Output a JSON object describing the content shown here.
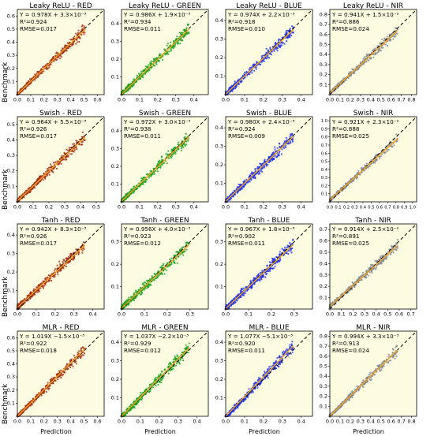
{
  "colors": {
    "background": "#fdfbe0",
    "red": "#a52b12",
    "green": "#1aa01e",
    "blue": "#1f2fe8",
    "nir": "#7f8894",
    "fit_line": "#f5a623",
    "identity_line": "#000000"
  },
  "labels": {
    "ylabel": "Benchmark",
    "xlabel": "Prediction"
  },
  "chart_data": [
    {
      "type": "scatter",
      "title": "Leaky ReLU - RED",
      "equation": "Y = 0.978X + 3.3×10⁻³",
      "r2": "R²=0.924",
      "rmse": "RMSE=0.017",
      "band": "red",
      "slope": 0.978,
      "intercept": 0.0033,
      "xlim": [
        0,
        0.65
      ],
      "ylim": [
        0,
        0.65
      ],
      "ticks": [
        "0.0",
        "0.1",
        "0.2",
        "0.3",
        "0.4",
        "0.5",
        "0.6"
      ],
      "tick_values": [
        0,
        0.1,
        0.2,
        0.3,
        0.4,
        0.5,
        0.6
      ]
    },
    {
      "type": "scatter",
      "title": "Leaky ReLU - GREEN",
      "equation": "Y = 0.986X + 1.9×10⁻³",
      "r2": "R²=0.934",
      "rmse": "RMSE=0.011",
      "band": "green",
      "slope": 0.986,
      "intercept": 0.0019,
      "xlim": [
        0,
        0.48
      ],
      "ylim": [
        0,
        0.48
      ],
      "ticks": [
        "0.0",
        "0.1",
        "0.2",
        "0.3",
        "0.4"
      ],
      "tick_values": [
        0,
        0.1,
        0.2,
        0.3,
        0.4
      ]
    },
    {
      "type": "scatter",
      "title": "Leaky ReLU - BLUE",
      "equation": "Y = 0.974X + 2.2×10⁻³",
      "r2": "R²=0.918",
      "rmse": "RMSE=0.010",
      "band": "blue",
      "slope": 0.974,
      "intercept": 0.0022,
      "xlim": [
        0,
        0.46
      ],
      "ylim": [
        0,
        0.46
      ],
      "ticks": [
        "0.0",
        "0.1",
        "0.2",
        "0.3",
        "0.4"
      ],
      "tick_values": [
        0,
        0.1,
        0.2,
        0.3,
        0.4
      ]
    },
    {
      "type": "scatter",
      "title": "Leaky ReLU - NIR",
      "equation": "Y = 0.941X + 1.5×10⁻²",
      "r2": "R²=0.886",
      "rmse": "RMSE=0.024",
      "band": "nir",
      "slope": 0.941,
      "intercept": 0.015,
      "xlim": [
        0,
        0.85
      ],
      "ylim": [
        0,
        0.85
      ],
      "ticks": [
        "0.0",
        "0.1",
        "0.2",
        "0.3",
        "0.4",
        "0.5",
        "0.6",
        "0.7",
        "0.8"
      ],
      "tick_values": [
        0,
        0.1,
        0.2,
        0.3,
        0.4,
        0.5,
        0.6,
        0.7,
        0.8
      ]
    },
    {
      "type": "scatter",
      "title": "Swish - RED",
      "equation": "Y = 0.964X + 5.5×10⁻³",
      "r2": "R²=0.926",
      "rmse": "RMSE=0.017",
      "band": "red",
      "slope": 0.964,
      "intercept": 0.0055,
      "xlim": [
        0,
        0.55
      ],
      "ylim": [
        0,
        0.55
      ],
      "ticks": [
        "0.0",
        "0.1",
        "0.2",
        "0.3",
        "0.4",
        "0.5"
      ],
      "tick_values": [
        0,
        0.1,
        0.2,
        0.3,
        0.4,
        0.5
      ]
    },
    {
      "type": "scatter",
      "title": "Swish - GREEN",
      "equation": "Y = 0.972X + 3.0×10⁻³",
      "r2": "R²=0.938",
      "rmse": "RMSE=0.011",
      "band": "green",
      "slope": 0.972,
      "intercept": 0.003,
      "xlim": [
        0,
        0.48
      ],
      "ylim": [
        0,
        0.48
      ],
      "ticks": [
        "0.0",
        "0.1",
        "0.2",
        "0.3",
        "0.4"
      ],
      "tick_values": [
        0,
        0.1,
        0.2,
        0.3,
        0.4
      ]
    },
    {
      "type": "scatter",
      "title": "Swish - BLUE",
      "equation": "Y = 0.980X + 2.4×10⁻³",
      "r2": "R²=0.924",
      "rmse": "RMSE=0.009",
      "band": "blue",
      "slope": 0.98,
      "intercept": 0.0024,
      "xlim": [
        0,
        0.46
      ],
      "ylim": [
        0,
        0.46
      ],
      "ticks": [
        "0.0",
        "0.1",
        "0.2",
        "0.3",
        "0.4"
      ],
      "tick_values": [
        0,
        0.1,
        0.2,
        0.3,
        0.4
      ]
    },
    {
      "type": "scatter",
      "title": "Swish - NIR",
      "equation": "Y = 0.921X + 2.3×10⁻²",
      "r2": "R²=0.888",
      "rmse": "RMSE=0.025",
      "band": "nir",
      "slope": 0.921,
      "intercept": 0.023,
      "xlim": [
        0,
        1.05
      ],
      "ylim": [
        0,
        1.05
      ],
      "ticks": [
        "0.0",
        "0.1",
        "0.2",
        "0.3",
        "0.4",
        "0.5",
        "0.6",
        "0.7",
        "0.8",
        "0.9",
        "1.0"
      ],
      "tick_values": [
        0,
        0.1,
        0.2,
        0.3,
        0.4,
        0.5,
        0.6,
        0.7,
        0.8,
        0.9,
        1.0
      ]
    },
    {
      "type": "scatter",
      "title": "Tanh - RED",
      "equation": "Y = 0.942X + 8.3×10⁻³",
      "r2": "R²=0.926",
      "rmse": "RMSE=0.017",
      "band": "red",
      "slope": 0.942,
      "intercept": 0.0083,
      "xlim": [
        0,
        0.46
      ],
      "ylim": [
        0,
        0.46
      ],
      "ticks": [
        "0.0",
        "0.1",
        "0.2",
        "0.3",
        "0.4"
      ],
      "tick_values": [
        0,
        0.1,
        0.2,
        0.3,
        0.4
      ]
    },
    {
      "type": "scatter",
      "title": "Tanh - GREEN",
      "equation": "Y = 0.956X + 4.0×10⁻³",
      "r2": "R²=0.923",
      "rmse": "RMSE=0.012",
      "band": "green",
      "slope": 0.956,
      "intercept": 0.004,
      "xlim": [
        0,
        0.38
      ],
      "ylim": [
        0,
        0.38
      ],
      "ticks": [
        "0.0",
        "0.1",
        "0.2",
        "0.3"
      ],
      "tick_values": [
        0,
        0.1,
        0.2,
        0.3
      ]
    },
    {
      "type": "scatter",
      "title": "Tanh - BLUE",
      "equation": "Y = 0.967X + 1.8×10⁻³",
      "r2": "R²=0.902",
      "rmse": "RMSE=0.011",
      "band": "blue",
      "slope": 0.967,
      "intercept": 0.0018,
      "xlim": [
        0,
        0.38
      ],
      "ylim": [
        0,
        0.38
      ],
      "ticks": [
        "0.0",
        "0.1",
        "0.2",
        "0.3"
      ],
      "tick_values": [
        0,
        0.1,
        0.2,
        0.3
      ]
    },
    {
      "type": "scatter",
      "title": "Tanh - NIR",
      "equation": "Y = 0.914X + 2.5×10⁻²",
      "r2": "R²=0.891",
      "rmse": "RMSE=0.025",
      "band": "nir",
      "slope": 0.914,
      "intercept": 0.025,
      "xlim": [
        0,
        0.75
      ],
      "ylim": [
        0,
        0.75
      ],
      "ticks": [
        "0.0",
        "0.1",
        "0.2",
        "0.3",
        "0.4",
        "0.5",
        "0.6",
        "0.7"
      ],
      "tick_values": [
        0,
        0.1,
        0.2,
        0.3,
        0.4,
        0.5,
        0.6,
        0.7
      ]
    },
    {
      "type": "scatter",
      "title": "MLR - RED",
      "equation": "Y = 1.019X −1.5×10⁻³",
      "r2": "R²=0.922",
      "rmse": "RMSE=0.018",
      "band": "red",
      "slope": 1.019,
      "intercept": -0.0015,
      "xlim": [
        0,
        0.65
      ],
      "ylim": [
        0,
        0.65
      ],
      "ticks": [
        "0.0",
        "0.1",
        "0.2",
        "0.3",
        "0.4",
        "0.5",
        "0.6"
      ],
      "tick_values": [
        0,
        0.1,
        0.2,
        0.3,
        0.4,
        0.5,
        0.6
      ]
    },
    {
      "type": "scatter",
      "title": "MLR - GREEN",
      "equation": "Y = 1.037X −2.2×10⁻³",
      "r2": "R²=0.929",
      "rmse": "RMSE=0.012",
      "band": "green",
      "slope": 1.037,
      "intercept": -0.0022,
      "xlim": [
        0,
        0.46
      ],
      "ylim": [
        0,
        0.46
      ],
      "ticks": [
        "0.0",
        "0.1",
        "0.2",
        "0.3",
        "0.4"
      ],
      "tick_values": [
        0,
        0.1,
        0.2,
        0.3,
        0.4
      ]
    },
    {
      "type": "scatter",
      "title": "MLR - BLUE",
      "equation": "Y = 1.077X −5.1×10⁻³",
      "r2": "R²=0.920",
      "rmse": "RMSE=0.011",
      "band": "blue",
      "slope": 1.077,
      "intercept": -0.0051,
      "xlim": [
        0,
        0.46
      ],
      "ylim": [
        0,
        0.46
      ],
      "ticks": [
        "0.0",
        "0.1",
        "0.2",
        "0.3",
        "0.4"
      ],
      "tick_values": [
        0,
        0.1,
        0.2,
        0.3,
        0.4
      ]
    },
    {
      "type": "scatter",
      "title": "MLR - NIR",
      "equation": "Y = 0.994X + 3.3×10⁻³",
      "r2": "R²=0.913",
      "rmse": "RMSE=0.024",
      "band": "nir",
      "slope": 0.994,
      "intercept": 0.0033,
      "xlim": [
        0,
        0.85
      ],
      "ylim": [
        0,
        0.85
      ],
      "ticks": [
        "0.0",
        "0.1",
        "0.2",
        "0.3",
        "0.4",
        "0.5",
        "0.6",
        "0.7",
        "0.8"
      ],
      "tick_values": [
        0,
        0.1,
        0.2,
        0.3,
        0.4,
        0.5,
        0.6,
        0.7,
        0.8
      ]
    }
  ]
}
